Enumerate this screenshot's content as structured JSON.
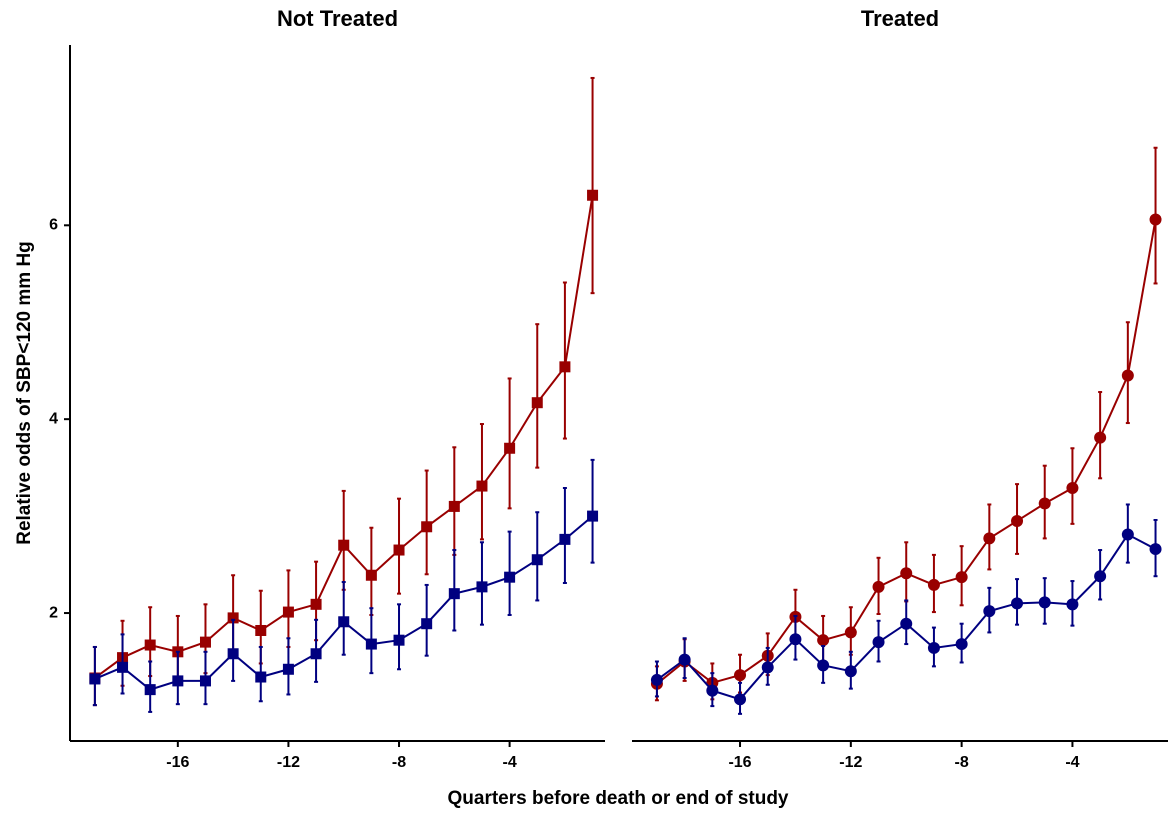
{
  "chart_data": [
    {
      "type": "line",
      "title": "Not Treated",
      "ylabel": "Relative odds of SBP<120 mm Hg",
      "xlabel": "Quarters before death or end of study",
      "marker": "square",
      "x": [
        -19,
        -18,
        -17,
        -16,
        -15,
        -14,
        -13,
        -12,
        -11,
        -10,
        -9,
        -8,
        -7,
        -6,
        -5,
        -4,
        -3,
        -2,
        -1
      ],
      "series": [
        {
          "color": "#990000",
          "values": [
            1.33,
            1.54,
            1.67,
            1.6,
            1.7,
            1.95,
            1.82,
            2.01,
            2.09,
            2.7,
            2.39,
            2.65,
            2.89,
            3.1,
            3.31,
            3.7,
            4.17,
            4.54,
            6.31
          ],
          "lower": [
            1.05,
            1.25,
            1.35,
            1.3,
            1.38,
            1.6,
            1.48,
            1.65,
            1.72,
            2.24,
            1.98,
            2.2,
            2.4,
            2.6,
            2.76,
            3.08,
            3.5,
            3.8,
            5.3
          ],
          "upper": [
            1.65,
            1.92,
            2.06,
            1.97,
            2.09,
            2.39,
            2.23,
            2.44,
            2.53,
            3.26,
            2.88,
            3.18,
            3.47,
            3.71,
            3.95,
            4.42,
            4.98,
            5.41,
            7.52
          ]
        },
        {
          "color": "#000080",
          "values": [
            1.32,
            1.44,
            1.21,
            1.3,
            1.3,
            1.58,
            1.34,
            1.42,
            1.58,
            1.91,
            1.68,
            1.72,
            1.89,
            2.2,
            2.27,
            2.37,
            2.55,
            2.76,
            3.0
          ],
          "lower": [
            1.05,
            1.17,
            0.98,
            1.06,
            1.06,
            1.3,
            1.09,
            1.16,
            1.29,
            1.57,
            1.38,
            1.42,
            1.56,
            1.82,
            1.88,
            1.98,
            2.13,
            2.31,
            2.52
          ],
          "upper": [
            1.65,
            1.78,
            1.5,
            1.6,
            1.6,
            1.93,
            1.65,
            1.74,
            1.93,
            2.32,
            2.05,
            2.09,
            2.29,
            2.65,
            2.73,
            2.84,
            3.04,
            3.29,
            3.58
          ]
        }
      ],
      "xlim": [
        -19.9,
        -0.55
      ],
      "xticks": [
        -16,
        -12,
        -8,
        -4
      ],
      "ylim": [
        0.68,
        7.86
      ],
      "yticks": [
        2,
        4,
        6
      ]
    },
    {
      "type": "line",
      "title": "Treated",
      "marker": "circle",
      "x": [
        -19,
        -18,
        -17,
        -16,
        -15,
        -14,
        -13,
        -12,
        -11,
        -10,
        -9,
        -8,
        -7,
        -6,
        -5,
        -4,
        -3,
        -2,
        -1
      ],
      "series": [
        {
          "color": "#990000",
          "values": [
            1.27,
            1.5,
            1.28,
            1.36,
            1.56,
            1.96,
            1.72,
            1.8,
            2.27,
            2.41,
            2.29,
            2.37,
            2.77,
            2.95,
            3.13,
            3.29,
            3.81,
            4.45,
            6.06
          ],
          "lower": [
            1.1,
            1.3,
            1.11,
            1.18,
            1.36,
            1.71,
            1.5,
            1.57,
            1.99,
            2.12,
            2.01,
            2.08,
            2.45,
            2.61,
            2.77,
            2.92,
            3.39,
            3.96,
            5.4
          ],
          "upper": [
            1.45,
            1.73,
            1.48,
            1.57,
            1.79,
            2.24,
            1.97,
            2.06,
            2.57,
            2.73,
            2.6,
            2.69,
            3.12,
            3.33,
            3.52,
            3.7,
            4.28,
            5.0,
            6.8
          ]
        },
        {
          "color": "#000080",
          "values": [
            1.31,
            1.52,
            1.2,
            1.11,
            1.44,
            1.73,
            1.46,
            1.4,
            1.7,
            1.89,
            1.64,
            1.68,
            2.02,
            2.1,
            2.11,
            2.09,
            2.38,
            2.81,
            2.66
          ],
          "lower": [
            1.14,
            1.33,
            1.04,
            0.96,
            1.26,
            1.52,
            1.28,
            1.22,
            1.5,
            1.68,
            1.45,
            1.49,
            1.8,
            1.88,
            1.89,
            1.87,
            2.14,
            2.52,
            2.38
          ],
          "upper": [
            1.5,
            1.74,
            1.38,
            1.28,
            1.64,
            1.97,
            1.66,
            1.6,
            1.92,
            2.13,
            1.85,
            1.89,
            2.26,
            2.35,
            2.36,
            2.33,
            2.65,
            3.12,
            2.96
          ]
        }
      ],
      "xlim": [
        -19.9,
        -0.55
      ],
      "xticks": [
        -16,
        -12,
        -8,
        -4
      ],
      "ylim": [
        0.68,
        7.86
      ]
    }
  ]
}
